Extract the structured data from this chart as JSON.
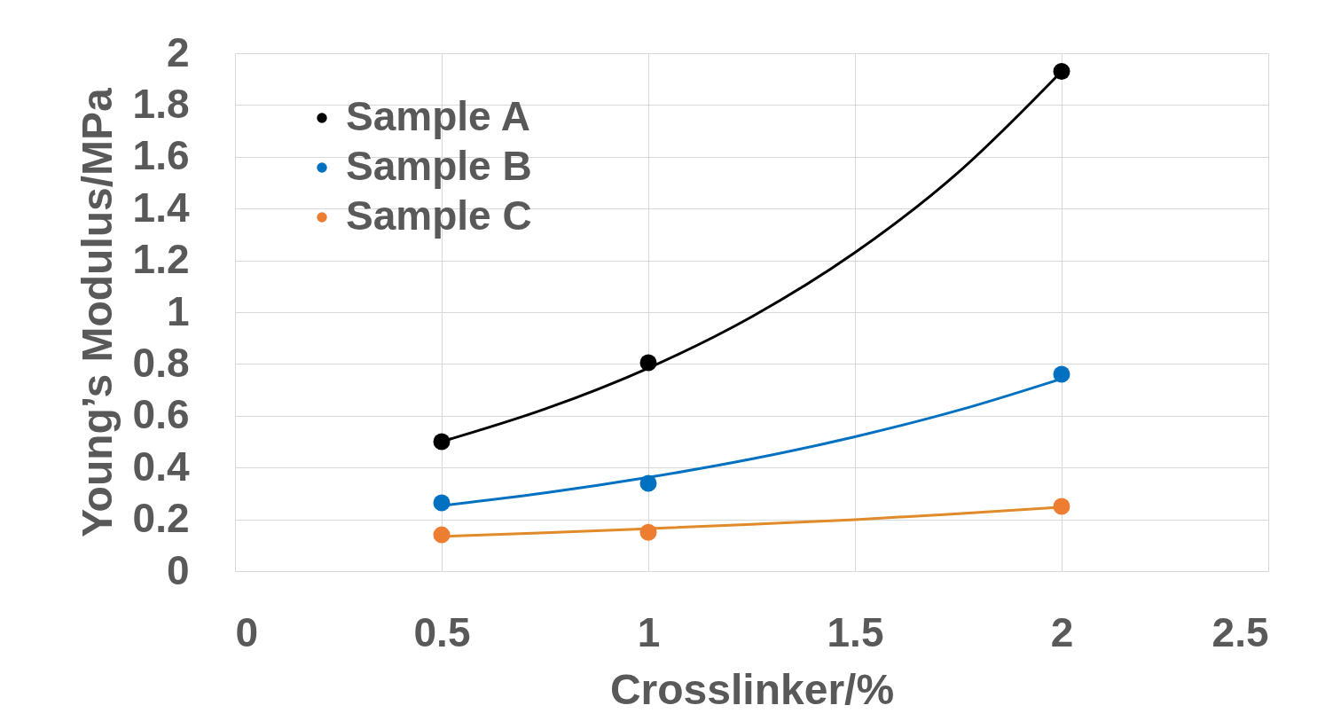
{
  "chart_data": {
    "type": "scatter",
    "xlabel": "Crosslinker/%",
    "ylabel": "Young’s Modulus/MPa",
    "xlim": [
      0,
      2.5
    ],
    "xticks": [
      0,
      0.5,
      1,
      1.5,
      2,
      2.5
    ],
    "ylim": [
      0,
      2
    ],
    "yticks": [
      0,
      0.2,
      0.4,
      0.6,
      0.8,
      1,
      1.2,
      1.4,
      1.6,
      1.8,
      2
    ],
    "grid": true,
    "legend": "top left",
    "x": [
      0.5,
      1,
      2
    ],
    "series": [
      {
        "name": "Sample A",
        "color": "#000000",
        "marker": "circle",
        "values": [
          0.5,
          0.805,
          1.93
        ]
      },
      {
        "name": "Sample B",
        "color": "#0070c0",
        "marker": "circle",
        "values": [
          0.264,
          0.339,
          0.76
        ]
      },
      {
        "name": "Sample C",
        "color": "#ed7d31",
        "marker": "circle",
        "values": [
          0.14,
          0.15,
          0.25
        ]
      },
      {
        "type": "line",
        "color": "#000000",
        "marker": "none",
        "x": [
          0.5,
          0.75,
          1,
          1.25,
          1.5,
          1.75,
          2
        ],
        "values": [
          0.5,
          0.626,
          0.784,
          0.982,
          1.23,
          1.54,
          1.93
        ]
      },
      {
        "type": "line",
        "color": "#0070c0",
        "marker": "none",
        "x": [
          0.5,
          0.75,
          1,
          1.25,
          1.5,
          1.75,
          2
        ],
        "values": [
          0.253,
          0.302,
          0.362,
          0.433,
          0.519,
          0.621,
          0.743
        ]
      },
      {
        "type": "line",
        "color": "#e08a2a",
        "marker": "none",
        "x": [
          0.5,
          0.75,
          1,
          1.25,
          1.5,
          1.75,
          2
        ],
        "values": [
          0.134,
          0.148,
          0.164,
          0.181,
          0.199,
          0.222,
          0.247
        ]
      }
    ]
  }
}
